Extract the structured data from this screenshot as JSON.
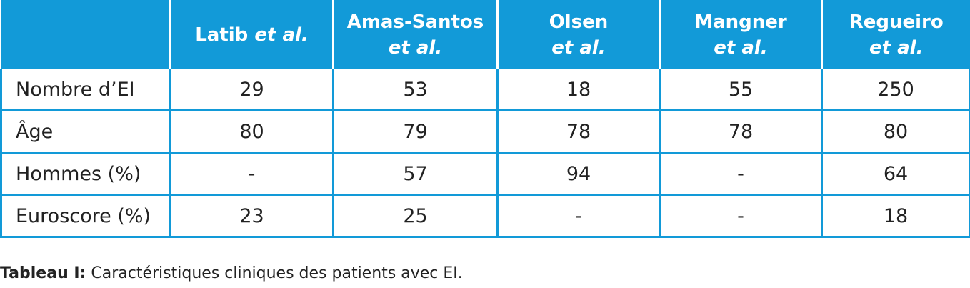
{
  "table": {
    "headers": [
      {
        "main": "",
        "em": ""
      },
      {
        "main": "Latib ",
        "em": "et al."
      },
      {
        "main": "Amas-Santos",
        "em": "et al."
      },
      {
        "main": "Olsen",
        "em": "et al."
      },
      {
        "main": "Mangner",
        "em": "et al."
      },
      {
        "main": "Regueiro",
        "em": "et al."
      }
    ],
    "rows": [
      {
        "label": "Nombre d’EI",
        "cells": [
          "29",
          "53",
          "18",
          "55",
          "250"
        ]
      },
      {
        "label": "Âge",
        "cells": [
          "80",
          "79",
          "78",
          "78",
          "80"
        ]
      },
      {
        "label": "Hommes (%)",
        "cells": [
          "-",
          "57",
          "94",
          "-",
          "64"
        ]
      },
      {
        "label": "Euroscore (%)",
        "cells": [
          "23",
          "25",
          "-",
          "-",
          "18"
        ]
      }
    ]
  },
  "caption": {
    "label": "Tableau I:",
    "text": " Caractéristiques cliniques des patients avec EI."
  },
  "colors": {
    "header_bg": "#129ad8",
    "header_text": "#ffffff",
    "body_text": "#222222"
  }
}
